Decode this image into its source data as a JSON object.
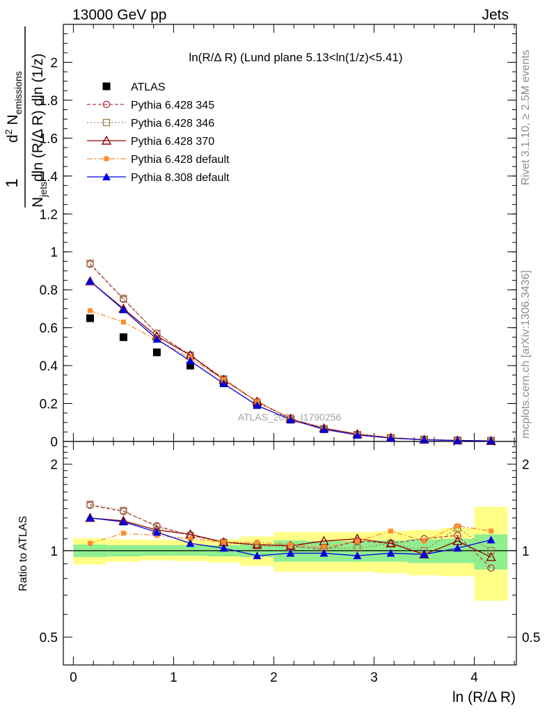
{
  "header": {
    "left": "13000 GeV pp",
    "right": "Jets"
  },
  "side_labels": {
    "rivet": "Rivet 3.1.10, ≥ 2.5M events",
    "mcplots": "mcplots.cern.ch [arXiv:1306.3436]"
  },
  "watermark": "ATLAS_2020_I1790256",
  "colors": {
    "atlas": "#000000",
    "p345": "#b23a48",
    "p346": "#a08050",
    "p370": "#8b0000",
    "p6def": "#ff8c2a",
    "p8def": "#0000dd",
    "band_inner": "#90ee90",
    "band_outer": "#ffff88"
  },
  "chart_data": [
    {
      "type": "scatter",
      "panel": "main",
      "title": "ln(R/Δ R) (Lund plane 5.13<ln(1/z)<5.41)",
      "ylabel_parts": {
        "one": "1",
        "njets_n": "N",
        "njets_sub": "jets",
        "den_rest": "dln (R/Δ R) dln (1/z)",
        "num_d": "d",
        "num_sup": "2",
        "num_n": "N",
        "num_sub": "emissions"
      },
      "xlabel": "",
      "xlim": [
        -0.1,
        4.42
      ],
      "ylim": [
        0,
        2.2
      ],
      "yticks": [
        0,
        0.2,
        0.4,
        0.6,
        0.8,
        1,
        1.2,
        1.4,
        1.6,
        1.8,
        2
      ],
      "yticklabels": [
        "0",
        "0.2",
        "0.4",
        "0.6",
        "0.8",
        "1",
        "1.2",
        "1.4",
        "1.6",
        "1.8",
        "2"
      ],
      "x": [
        0.167,
        0.5,
        0.833,
        1.167,
        1.5,
        1.833,
        2.167,
        2.5,
        2.833,
        3.167,
        3.5,
        3.833,
        4.167
      ],
      "legend_position": "top-left",
      "series": [
        {
          "name": "ATLAS",
          "key": "atlas",
          "marker": "square-filled",
          "line": "none",
          "values": [
            0.65,
            0.55,
            0.47,
            0.4,
            0.31,
            0.195,
            0.115,
            0.065,
            0.035,
            0.018,
            0.009,
            0.005,
            0.003
          ]
        },
        {
          "name": "Pythia 6.428 345",
          "key": "p345",
          "marker": "circle-open",
          "line": "dashed",
          "values": [
            0.935,
            0.75,
            0.57,
            0.455,
            0.33,
            0.21,
            0.12,
            0.067,
            0.036,
            0.019,
            0.01,
            0.005,
            0.0025
          ]
        },
        {
          "name": "Pythia 6.428 346",
          "key": "p346",
          "marker": "square-open",
          "line": "dotted",
          "values": [
            0.94,
            0.755,
            0.57,
            0.455,
            0.33,
            0.208,
            0.119,
            0.066,
            0.036,
            0.019,
            0.009,
            0.0055,
            0.003
          ]
        },
        {
          "name": "Pythia 6.428 370",
          "key": "p370",
          "marker": "triangle-open",
          "line": "solid",
          "values": [
            0.845,
            0.7,
            0.555,
            0.455,
            0.325,
            0.21,
            0.12,
            0.07,
            0.039,
            0.02,
            0.0095,
            0.0055,
            0.0028
          ]
        },
        {
          "name": "Pythia 6.428 default",
          "key": "p6def",
          "marker": "square-filled-small",
          "line": "dashdot",
          "values": [
            0.69,
            0.63,
            0.535,
            0.44,
            0.325,
            0.21,
            0.12,
            0.066,
            0.036,
            0.02,
            0.01,
            0.006,
            0.0035
          ]
        },
        {
          "name": "Pythia 8.308 default",
          "key": "p8def",
          "marker": "triangle-filled",
          "line": "solid",
          "values": [
            0.845,
            0.695,
            0.54,
            0.425,
            0.305,
            0.19,
            0.115,
            0.064,
            0.034,
            0.0175,
            0.0088,
            0.005,
            0.0033
          ]
        }
      ]
    },
    {
      "type": "scatter",
      "panel": "ratio",
      "ylabel": "Ratio to ATLAS",
      "xlabel": "ln (R/Δ R)",
      "xlim": [
        -0.1,
        4.42
      ],
      "ylim": [
        0.4,
        2.4
      ],
      "yscale": "log",
      "yticks": [
        0.5,
        1,
        2
      ],
      "yticklabels": [
        "0.5",
        "1",
        "2"
      ],
      "xticks": [
        0,
        1,
        2,
        3,
        4
      ],
      "xticklabels": [
        "0",
        "1",
        "2",
        "3",
        "4"
      ],
      "bin_edges": [
        0,
        0.333,
        0.667,
        1,
        1.333,
        1.667,
        2,
        2.333,
        2.667,
        3,
        3.333,
        3.667,
        4,
        4.333
      ],
      "band_inner": {
        "lo": [
          0.95,
          0.955,
          0.96,
          0.96,
          0.955,
          0.95,
          0.915,
          0.915,
          0.915,
          0.915,
          0.905,
          0.905,
          0.86
        ],
        "hi": [
          1.05,
          1.045,
          1.045,
          1.045,
          1.045,
          1.05,
          1.085,
          1.08,
          1.08,
          1.085,
          1.095,
          1.1,
          1.14
        ]
      },
      "band_outer": {
        "lo": [
          0.895,
          0.915,
          0.925,
          0.92,
          0.91,
          0.885,
          0.845,
          0.845,
          0.845,
          0.835,
          0.82,
          0.815,
          0.67
        ],
        "hi": [
          1.105,
          1.095,
          1.09,
          1.09,
          1.095,
          1.12,
          1.16,
          1.16,
          1.16,
          1.17,
          1.18,
          1.2,
          1.42
        ]
      },
      "x": [
        0.167,
        0.5,
        0.833,
        1.167,
        1.5,
        1.833,
        2.167,
        2.5,
        2.833,
        3.167,
        3.5,
        3.833,
        4.167
      ],
      "series": [
        {
          "name": "Pythia 6.428 345",
          "key": "p345",
          "marker": "circle-open",
          "line": "dashed",
          "values": [
            1.44,
            1.37,
            1.22,
            1.13,
            1.07,
            1.05,
            1.04,
            1.01,
            1.08,
            1.06,
            1.1,
            1.13,
            0.87
          ]
        },
        {
          "name": "Pythia 6.428 346",
          "key": "p346",
          "marker": "square-open",
          "line": "dotted",
          "values": [
            1.45,
            1.38,
            1.21,
            1.13,
            1.07,
            1.04,
            1.03,
            1.02,
            1.02,
            1.06,
            1.0,
            1.2,
            1.0
          ]
        },
        {
          "name": "Pythia 6.428 370",
          "key": "p370",
          "marker": "triangle-open",
          "line": "solid",
          "values": [
            1.3,
            1.27,
            1.18,
            1.14,
            1.07,
            1.05,
            1.04,
            1.08,
            1.1,
            1.06,
            0.97,
            1.08,
            0.95
          ]
        },
        {
          "name": "Pythia 6.428 default",
          "key": "p6def",
          "marker": "square-filled-small",
          "line": "dashdot",
          "values": [
            1.06,
            1.15,
            1.13,
            1.1,
            1.07,
            1.07,
            1.05,
            1.03,
            1.08,
            1.17,
            1.08,
            1.22,
            1.17
          ]
        },
        {
          "name": "Pythia 8.308 default",
          "key": "p8def",
          "marker": "triangle-filled",
          "line": "solid",
          "values": [
            1.3,
            1.26,
            1.16,
            1.06,
            1.02,
            0.96,
            0.98,
            0.98,
            0.96,
            0.98,
            0.97,
            1.02,
            1.09
          ]
        }
      ]
    }
  ]
}
